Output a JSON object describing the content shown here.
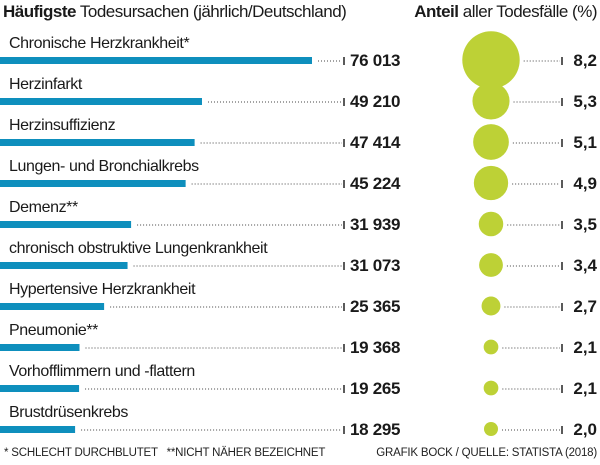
{
  "chart_data": {
    "type": "bar",
    "title_left_bold": "Häufigste",
    "title_left_rest": "Todesursachen (jährlich/Deutschland)",
    "title_right_bold": "Anteil",
    "title_right_rest": "aller Todesfälle (%)",
    "categories": [
      "Chronische Herzkrankheit*",
      "Herzinfarkt",
      "Herzinsuffizienz",
      "Lungen- und Bronchialkrebs",
      "Demenz**",
      "chronisch obstruktive Lungenkrankheit",
      "Hypertensive Herzkrankheit",
      "Pneumonie**",
      "Vorhofflimmern und -flattern",
      "Brustdrüsenkrebs"
    ],
    "values": [
      76013,
      49210,
      47414,
      45224,
      31939,
      31073,
      25365,
      19368,
      19265,
      18295
    ],
    "value_labels": [
      "76 013",
      "49 210",
      "47 414",
      "45 224",
      "31 939",
      "31 073",
      "25 365",
      "19 368",
      "19 265",
      "18 295"
    ],
    "shares": [
      8.2,
      5.3,
      5.1,
      4.9,
      3.5,
      3.4,
      2.7,
      2.1,
      2.1,
      2.0
    ],
    "share_labels": [
      "8,2",
      "5,3",
      "5,1",
      "4,9",
      "3,5",
      "3,4",
      "2,7",
      "2,1",
      "2,1",
      "2,0"
    ],
    "colors": {
      "bar": "#0e8fbd",
      "bubble": "#bdd136"
    },
    "footnote_left": "* SCHLECHT DURCHBLUTET   **NICHT NÄHER BEZEICHNET",
    "footnote_right": "GRAFIK BOCK / QUELLE: STATISTA (2018)"
  }
}
